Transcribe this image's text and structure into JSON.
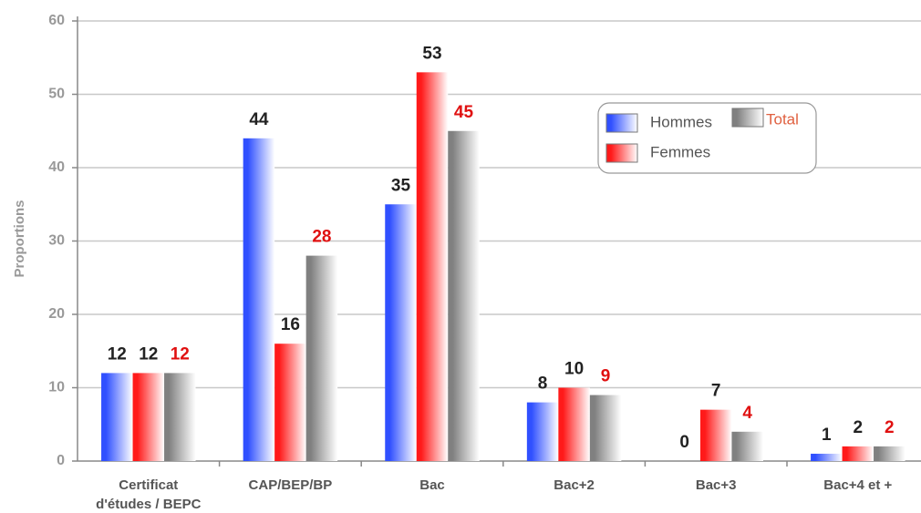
{
  "chart_data": {
    "type": "bar",
    "y_label": "Proportions",
    "categories": [
      "Certificat d'études / BEPC",
      "CAP/BEP/BP",
      "Bac",
      "Bac+2",
      "Bac+3",
      "Bac+4 et +"
    ],
    "series": [
      {
        "name": "Hommes",
        "color": "#3050ff",
        "label_color": "#222222",
        "values": [
          12,
          44,
          35,
          8,
          0,
          1
        ]
      },
      {
        "name": "Femmes",
        "color": "#ff1a1a",
        "label_color": "#222222",
        "values": [
          12,
          16,
          53,
          10,
          7,
          2
        ]
      },
      {
        "name": "Total",
        "color": "#808080",
        "label_color": "#e01010",
        "values": [
          12,
          28,
          45,
          9,
          4,
          2
        ]
      }
    ],
    "ylim": [
      0,
      60
    ],
    "yticks": [
      0,
      10,
      20,
      30,
      40,
      50,
      60
    ],
    "grid": true
  }
}
